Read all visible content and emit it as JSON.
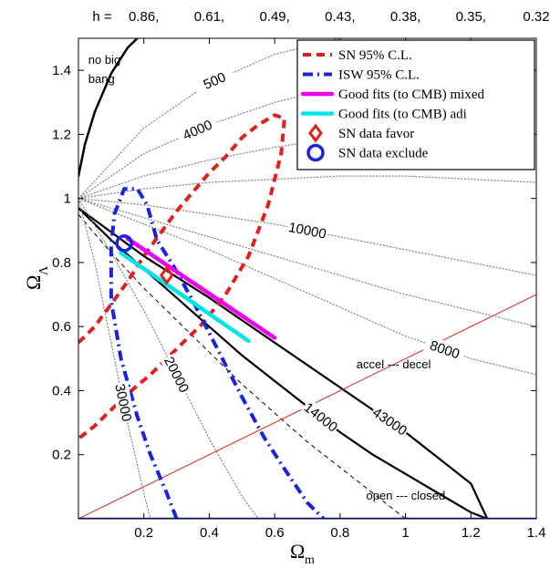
{
  "chart_data": {
    "type": "line",
    "title": "",
    "xlabel": {
      "main": "Ω",
      "sub": "m"
    },
    "ylabel": {
      "main": "Ω",
      "sub": "Λ"
    },
    "xlim": [
      0,
      1.4
    ],
    "ylim": [
      0,
      1.5
    ],
    "x_ticks": [
      0.2,
      0.4,
      0.6,
      0.8,
      1,
      1.2,
      1.4
    ],
    "y_ticks": [
      0.2,
      0.4,
      0.6,
      0.8,
      1,
      1.2,
      1.4
    ],
    "top_axis": {
      "prefix": "h =",
      "labels": [
        "0.86,",
        "0.61,",
        "0.49,",
        "0.43,",
        "0.38,",
        "0.35,",
        "0.32"
      ]
    },
    "legend": {
      "placement": "top-right",
      "entries": [
        {
          "label": "SN 95% C.L.",
          "color": "#e0201c",
          "style": "dashed"
        },
        {
          "label": "ISW 95% C.L.",
          "color": "#1a22dd",
          "style": "dashdot"
        },
        {
          "label": "Good fits (to CMB) mixed",
          "color": "#ee00ee",
          "style": "solid"
        },
        {
          "label": "Good fits (to CMB) adi",
          "color": "#00e5e5",
          "style": "solid"
        },
        {
          "label": "SN data favor",
          "color": "#e0201c",
          "style": "diamond"
        },
        {
          "label": "SN data exclude",
          "color": "#1a22dd",
          "style": "circle"
        }
      ]
    },
    "series": [
      {
        "name": "SN 95% C.L.",
        "color": "#e0201c",
        "style": "dashed",
        "x": [
          0.0,
          0.05,
          0.1,
          0.15,
          0.2,
          0.25,
          0.3,
          0.35,
          0.4,
          0.45,
          0.5,
          0.55,
          0.6,
          0.63,
          0.62,
          0.58,
          0.52,
          0.45,
          0.38,
          0.3,
          0.22,
          0.15,
          0.1,
          0.05,
          0.0
        ],
        "y": [
          0.55,
          0.6,
          0.67,
          0.74,
          0.82,
          0.89,
          0.96,
          1.02,
          1.08,
          1.13,
          1.19,
          1.23,
          1.26,
          1.25,
          1.14,
          0.98,
          0.82,
          0.7,
          0.61,
          0.53,
          0.45,
          0.39,
          0.34,
          0.29,
          0.25
        ]
      },
      {
        "name": "ISW 95% C.L.",
        "color": "#1a22dd",
        "style": "dashdot",
        "x": [
          0.3,
          0.27,
          0.22,
          0.18,
          0.13,
          0.1,
          0.1,
          0.11,
          0.14,
          0.18,
          0.21,
          0.24,
          0.29,
          0.35,
          0.43,
          0.5,
          0.57,
          0.64,
          0.7,
          0.74,
          0.75
        ],
        "y": [
          0.0,
          0.08,
          0.2,
          0.32,
          0.5,
          0.68,
          0.85,
          0.95,
          1.03,
          1.03,
          0.98,
          0.87,
          0.79,
          0.68,
          0.52,
          0.38,
          0.25,
          0.14,
          0.05,
          0.01,
          0.0
        ]
      },
      {
        "name": "Good fits (to CMB) mixed",
        "color": "#ee00ee",
        "style": "solid",
        "x": [
          0.15,
          0.6
        ],
        "y": [
          0.875,
          0.565
        ]
      },
      {
        "name": "Good fits (to CMB) adi",
        "color": "#00e5e5",
        "style": "solid",
        "x": [
          0.13,
          0.52
        ],
        "y": [
          0.83,
          0.555
        ]
      },
      {
        "name": "SN data favor",
        "color": "#e0201c",
        "style": "diamond",
        "x": [
          0.27
        ],
        "y": [
          0.76
        ]
      },
      {
        "name": "SN data exclude",
        "color": "#1a22dd",
        "style": "circle",
        "x": [
          0.14
        ],
        "y": [
          0.86
        ]
      }
    ],
    "reference_lines": [
      {
        "label": "no big bang",
        "color": "#000000",
        "style": "solid",
        "x": [
          0.0,
          0.02,
          0.05,
          0.1,
          0.15,
          0.2
        ],
        "y": [
          1.07,
          1.17,
          1.27,
          1.39,
          1.47,
          1.52
        ]
      },
      {
        "label": "accel --- decel",
        "color": "#e0201c",
        "style": "thin",
        "x": [
          0.0,
          1.4
        ],
        "y": [
          0.0,
          0.7
        ]
      },
      {
        "label": "open --- closed",
        "color": "#1a22dd",
        "style": "solid",
        "x": [
          0.0,
          1.4
        ],
        "y": [
          0.0,
          0.0
        ]
      }
    ],
    "contours": [
      {
        "label": "43000",
        "color": "#000000",
        "style": "solid",
        "x": [
          0.0,
          0.2,
          0.4,
          0.6,
          0.8,
          1.0,
          1.2,
          1.25
        ],
        "y": [
          0.97,
          0.82,
          0.69,
          0.55,
          0.41,
          0.27,
          0.11,
          0.0
        ]
      },
      {
        "label": "14000",
        "color": "#000000",
        "style": "solid",
        "x": [
          0.0,
          0.1,
          0.2,
          0.3,
          0.4,
          0.5,
          0.6,
          0.7,
          0.8,
          0.9,
          1.0,
          1.1,
          1.2,
          1.25
        ],
        "y": [
          0.97,
          0.87,
          0.78,
          0.69,
          0.6,
          0.51,
          0.43,
          0.35,
          0.27,
          0.2,
          0.14,
          0.08,
          0.02,
          0.0
        ]
      },
      {
        "label": "",
        "color": "#000000",
        "style": "thin-dashed",
        "x": [
          0.0,
          0.1,
          0.2,
          0.3,
          0.4,
          0.5,
          0.6,
          0.7,
          0.8,
          0.9,
          1.0
        ],
        "y": [
          0.95,
          0.83,
          0.72,
          0.62,
          0.52,
          0.42,
          0.33,
          0.24,
          0.16,
          0.08,
          0.0
        ]
      },
      {
        "label": "500",
        "color": "#888888",
        "style": "dotted",
        "x": [
          0.0,
          0.2,
          0.4,
          0.6,
          0.8
        ],
        "y": [
          1.0,
          1.22,
          1.36,
          1.45,
          1.5
        ]
      },
      {
        "label": "4000",
        "color": "#888888",
        "style": "dotted",
        "x": [
          0.0,
          0.2,
          0.4,
          0.6,
          0.8,
          1.0,
          1.2,
          1.4
        ],
        "y": [
          1.0,
          1.14,
          1.23,
          1.3,
          1.35,
          1.39,
          1.42,
          1.44
        ]
      },
      {
        "label": "10000",
        "color": "#888888",
        "style": "dotted",
        "x": [
          0.0,
          0.2,
          0.4,
          0.6,
          0.8,
          1.0,
          1.2,
          1.4
        ],
        "y": [
          1.0,
          0.98,
          0.95,
          0.92,
          0.88,
          0.84,
          0.8,
          0.76
        ]
      },
      {
        "label": "8000",
        "color": "#888888",
        "style": "dotted",
        "x": [
          0.0,
          0.2,
          0.4,
          0.6,
          0.8,
          1.0,
          1.2,
          1.4
        ],
        "y": [
          1.0,
          0.92,
          0.84,
          0.75,
          0.66,
          0.57,
          0.5,
          0.45
        ]
      },
      {
        "label": "30000",
        "color": "#888888",
        "style": "dotted",
        "x": [
          0.0,
          0.05,
          0.1,
          0.15,
          0.2,
          0.22
        ],
        "y": [
          1.0,
          0.8,
          0.55,
          0.3,
          0.08,
          0.0
        ]
      },
      {
        "label": "20000",
        "color": "#888888",
        "style": "dotted",
        "x": [
          0.0,
          0.1,
          0.2,
          0.3,
          0.4,
          0.5,
          0.55
        ],
        "y": [
          1.0,
          0.83,
          0.65,
          0.45,
          0.25,
          0.07,
          0.0
        ]
      },
      {
        "label": "",
        "color": "#888888",
        "style": "dotted",
        "x": [
          0.0,
          0.2,
          0.4,
          0.6,
          0.8,
          1.0,
          1.2,
          1.4
        ],
        "y": [
          1.0,
          0.94,
          0.88,
          0.82,
          0.76,
          0.7,
          0.65,
          0.6
        ]
      },
      {
        "label": "",
        "color": "#888888",
        "style": "dotted",
        "x": [
          0.0,
          0.2,
          0.4,
          0.6,
          0.8,
          1.0,
          1.2,
          1.4
        ],
        "y": [
          1.0,
          1.07,
          1.12,
          1.16,
          1.19,
          1.21,
          1.23,
          1.24
        ]
      },
      {
        "label": "",
        "color": "#888888",
        "style": "dotted",
        "x": [
          0.0,
          0.2,
          0.4,
          0.6,
          0.8,
          1.0,
          1.2,
          1.4
        ],
        "y": [
          1.0,
          1.03,
          1.05,
          1.06,
          1.07,
          1.07,
          1.06,
          1.05
        ]
      }
    ],
    "annotations": [
      {
        "text": "no big",
        "x": 0.03,
        "y": 1.42
      },
      {
        "text": "bang",
        "x": 0.03,
        "y": 1.36
      },
      {
        "text": "accel --- decel",
        "x": 0.85,
        "y": 0.47
      },
      {
        "text": "open --- closed",
        "x": 0.88,
        "y": 0.06
      }
    ],
    "grid": false
  }
}
